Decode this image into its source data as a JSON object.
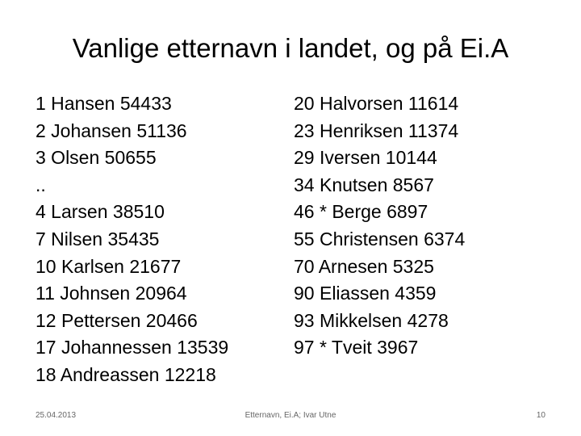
{
  "slide": {
    "title": "Vanlige etternavn i landet, og på Ei.A",
    "left_column": [
      "1 Hansen 54433",
      "2 Johansen 51136",
      "3 Olsen 50655",
      "..",
      "4 Larsen 38510",
      "7 Nilsen 35435",
      "10 Karlsen 21677",
      "11 Johnsen 20964",
      "12 Pettersen 20466",
      "17 Johannessen 13539",
      "18 Andreassen 12218"
    ],
    "right_column": [
      "20 Halvorsen 11614",
      "23 Henriksen 11374",
      "29 Iversen 10144",
      "34 Knutsen 8567",
      "46 * Berge 6897",
      "55 Christensen 6374",
      "70 Arnesen 5325",
      "90 Eliassen 4359",
      "93 Mikkelsen 4278",
      "97 * Tveit 3967"
    ]
  },
  "footer": {
    "date": "25.04.2013",
    "center_text": "Etternavn, Ei.A; Ivar Utne",
    "page_number": "10"
  },
  "colors": {
    "background": "#ffffff",
    "text": "#000000",
    "footer_text": "#666666"
  }
}
